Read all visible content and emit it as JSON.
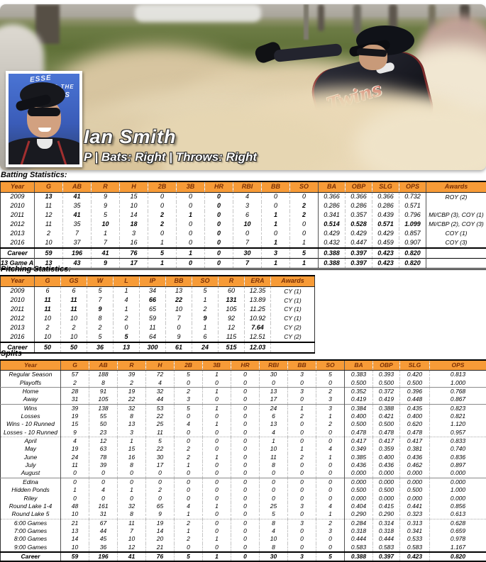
{
  "colors": {
    "header_bg": "#F79B37",
    "header_text": "#7B3005"
  },
  "player": {
    "name": "Ian Smith",
    "details": "P | Bats: Right | Throws: Right",
    "jersey_script": "Twins",
    "shirt_lines": [
      "ESSE",
      "AND THE",
      "PPERS"
    ]
  },
  "batting": {
    "title": "Batting Statistics:",
    "headers": [
      "Year",
      "G",
      "AB",
      "R",
      "H",
      "2B",
      "3B",
      "HR",
      "RBI",
      "BB",
      "SO",
      "BA",
      "OBP",
      "SLG",
      "OPS",
      "Awards"
    ],
    "rows": [
      {
        "y": "2009",
        "c": [
          "13",
          "41",
          "9",
          "15",
          "0",
          "0",
          "0",
          "4",
          "0",
          "0",
          "0.366",
          "0.366",
          "0.366",
          "0.732",
          "ROY (2)"
        ],
        "b": [
          0,
          1,
          6
        ]
      },
      {
        "y": "2010",
        "c": [
          "11",
          "35",
          "9",
          "10",
          "0",
          "0",
          "0",
          "3",
          "0",
          "2",
          "0.286",
          "0.286",
          "0.286",
          "0.571",
          ""
        ],
        "b": [
          6,
          9
        ]
      },
      {
        "y": "2011",
        "c": [
          "12",
          "41",
          "5",
          "14",
          "2",
          "1",
          "0",
          "6",
          "1",
          "2",
          "0.341",
          "0.357",
          "0.439",
          "0.796",
          "MI/CBP (3), COY (1)"
        ],
        "b": [
          1,
          4,
          5,
          6,
          8,
          9
        ]
      },
      {
        "y": "2012",
        "c": [
          "11",
          "35",
          "10",
          "18",
          "2",
          "0",
          "0",
          "10",
          "1",
          "0",
          "0.514",
          "0.528",
          "0.571",
          "1.099",
          "MI/CBP (2), COY (3)"
        ],
        "b": [
          2,
          3,
          4,
          6,
          7,
          8,
          10,
          11,
          12,
          13
        ]
      },
      {
        "y": "2013",
        "c": [
          "2",
          "7",
          "1",
          "3",
          "0",
          "0",
          "0",
          "0",
          "0",
          "0",
          "0.429",
          "0.429",
          "0.429",
          "0.857",
          "COY (1)"
        ],
        "b": [
          6
        ]
      },
      {
        "y": "2016",
        "c": [
          "10",
          "37",
          "7",
          "16",
          "1",
          "0",
          "0",
          "7",
          "1",
          "1",
          "0.432",
          "0.447",
          "0.459",
          "0.907",
          "COY (3)"
        ],
        "b": [
          6,
          8
        ]
      }
    ],
    "footer": [
      {
        "y": "Career",
        "c": [
          "59",
          "196",
          "41",
          "76",
          "5",
          "1",
          "0",
          "30",
          "3",
          "5",
          "0.388",
          "0.397",
          "0.423",
          "0.820",
          ""
        ]
      },
      {
        "y": "13 Game Avg",
        "c": [
          "13",
          "43",
          "9",
          "17",
          "1",
          "0",
          "0",
          "7",
          "1",
          "1",
          "0.388",
          "0.397",
          "0.423",
          "0.820",
          ""
        ]
      }
    ]
  },
  "pitching": {
    "title": "Pitching Statistics:",
    "headers": [
      "Year",
      "G",
      "GS",
      "W",
      "L",
      "IP",
      "BB",
      "SO",
      "R",
      "ERA",
      "Awards"
    ],
    "rows": [
      {
        "y": "2009",
        "c": [
          "6",
          "6",
          "5",
          "1",
          "34",
          "13",
          "5",
          "60",
          "12.35",
          "CY (1)"
        ],
        "b": []
      },
      {
        "y": "2010",
        "c": [
          "11",
          "11",
          "7",
          "4",
          "66",
          "22",
          "1",
          "131",
          "13.89",
          "CY (1)"
        ],
        "b": [
          0,
          1,
          4,
          5,
          7
        ]
      },
      {
        "y": "2011",
        "c": [
          "11",
          "11",
          "9",
          "1",
          "65",
          "10",
          "2",
          "105",
          "11.25",
          "CY (1)"
        ],
        "b": [
          0,
          1,
          2
        ]
      },
      {
        "y": "2012",
        "c": [
          "10",
          "10",
          "8",
          "2",
          "59",
          "7",
          "9",
          "92",
          "10.92",
          "CY (1)"
        ],
        "b": [
          6
        ]
      },
      {
        "y": "2013",
        "c": [
          "2",
          "2",
          "2",
          "0",
          "11",
          "0",
          "1",
          "12",
          "7.64",
          "CY (2)"
        ],
        "b": [
          8
        ]
      },
      {
        "y": "2016",
        "c": [
          "10",
          "10",
          "5",
          "5",
          "64",
          "9",
          "6",
          "115",
          "12.51",
          "CY (2)"
        ],
        "b": [
          3
        ]
      }
    ],
    "footer": [
      {
        "y": "Career",
        "c": [
          "50",
          "50",
          "36",
          "13",
          "300",
          "61",
          "24",
          "515",
          "12.03",
          ""
        ]
      }
    ]
  },
  "splits": {
    "title": "Splits",
    "headers": [
      "Year",
      "G",
      "AB",
      "R",
      "H",
      "2B",
      "3B",
      "HR",
      "RBI",
      "BB",
      "SO",
      "BA",
      "OBP",
      "SLG",
      "OPS"
    ],
    "rows": [
      {
        "y": "Regular Season",
        "c": [
          "57",
          "188",
          "39",
          "72",
          "5",
          "1",
          "0",
          "30",
          "3",
          "5",
          "0.383",
          "0.393",
          "0.420",
          "0.813"
        ]
      },
      {
        "y": "Playoffs",
        "c": [
          "2",
          "8",
          "2",
          "4",
          "0",
          "0",
          "0",
          "0",
          "0",
          "0",
          "0.500",
          "0.500",
          "0.500",
          "1.000"
        ]
      },
      {
        "y": "Home",
        "sep": "s",
        "c": [
          "28",
          "91",
          "19",
          "32",
          "2",
          "1",
          "0",
          "13",
          "3",
          "2",
          "0.352",
          "0.372",
          "0.396",
          "0.768"
        ]
      },
      {
        "y": "Away",
        "c": [
          "31",
          "105",
          "22",
          "44",
          "3",
          "0",
          "0",
          "17",
          "0",
          "3",
          "0.419",
          "0.419",
          "0.448",
          "0.867"
        ]
      },
      {
        "y": "Wins",
        "sep": "s",
        "c": [
          "39",
          "138",
          "32",
          "53",
          "5",
          "1",
          "0",
          "24",
          "1",
          "3",
          "0.384",
          "0.388",
          "0.435",
          "0.823"
        ]
      },
      {
        "y": "Losses",
        "c": [
          "19",
          "55",
          "8",
          "22",
          "0",
          "0",
          "0",
          "6",
          "2",
          "1",
          "0.400",
          "0.421",
          "0.400",
          "0.821"
        ]
      },
      {
        "y": "Wins - 10 Runned",
        "c": [
          "15",
          "50",
          "13",
          "25",
          "4",
          "1",
          "0",
          "13",
          "0",
          "2",
          "0.500",
          "0.500",
          "0.620",
          "1.120"
        ]
      },
      {
        "y": "Losses - 10 Runned",
        "c": [
          "9",
          "23",
          "3",
          "11",
          "0",
          "0",
          "0",
          "4",
          "0",
          "0",
          "0.478",
          "0.478",
          "0.478",
          "0.957"
        ]
      },
      {
        "y": "April",
        "sep": "d",
        "c": [
          "4",
          "12",
          "1",
          "5",
          "0",
          "0",
          "0",
          "1",
          "0",
          "0",
          "0.417",
          "0.417",
          "0.417",
          "0.833"
        ]
      },
      {
        "y": "May",
        "c": [
          "19",
          "63",
          "15",
          "22",
          "2",
          "0",
          "0",
          "10",
          "1",
          "4",
          "0.349",
          "0.359",
          "0.381",
          "0.740"
        ]
      },
      {
        "y": "June",
        "c": [
          "24",
          "78",
          "16",
          "30",
          "2",
          "1",
          "0",
          "11",
          "2",
          "1",
          "0.385",
          "0.400",
          "0.436",
          "0.836"
        ]
      },
      {
        "y": "July",
        "c": [
          "11",
          "39",
          "8",
          "17",
          "1",
          "0",
          "0",
          "8",
          "0",
          "0",
          "0.436",
          "0.436",
          "0.462",
          "0.897"
        ]
      },
      {
        "y": "August",
        "c": [
          "0",
          "0",
          "0",
          "0",
          "0",
          "0",
          "0",
          "0",
          "0",
          "0",
          "0.000",
          "0.000",
          "0.000",
          "0.000"
        ]
      },
      {
        "y": "Edina",
        "sep": "s",
        "c": [
          "0",
          "0",
          "0",
          "0",
          "0",
          "0",
          "0",
          "0",
          "0",
          "0",
          "0.000",
          "0.000",
          "0.000",
          "0.000"
        ]
      },
      {
        "y": "Hidden Ponds",
        "c": [
          "1",
          "4",
          "1",
          "2",
          "0",
          "0",
          "0",
          "0",
          "0",
          "0",
          "0.500",
          "0.500",
          "0.500",
          "1.000"
        ]
      },
      {
        "y": "Riley",
        "c": [
          "0",
          "0",
          "0",
          "0",
          "0",
          "0",
          "0",
          "0",
          "0",
          "0",
          "0.000",
          "0.000",
          "0.000",
          "0.000"
        ]
      },
      {
        "y": "Round Lake 1-4",
        "c": [
          "48",
          "161",
          "32",
          "65",
          "4",
          "1",
          "0",
          "25",
          "3",
          "4",
          "0.404",
          "0.415",
          "0.441",
          "0.856"
        ]
      },
      {
        "y": "Round Lake 5",
        "c": [
          "10",
          "31",
          "8",
          "9",
          "1",
          "0",
          "0",
          "5",
          "0",
          "1",
          "0.290",
          "0.290",
          "0.323",
          "0.613"
        ]
      },
      {
        "y": "6:00 Games",
        "sep": "d",
        "c": [
          "21",
          "67",
          "11",
          "19",
          "2",
          "0",
          "0",
          "8",
          "3",
          "2",
          "0.284",
          "0.314",
          "0.313",
          "0.628"
        ]
      },
      {
        "y": "7:00 Games",
        "c": [
          "13",
          "44",
          "7",
          "14",
          "1",
          "0",
          "0",
          "4",
          "0",
          "3",
          "0.318",
          "0.318",
          "0.341",
          "0.659"
        ]
      },
      {
        "y": "8:00 Games",
        "c": [
          "14",
          "45",
          "10",
          "20",
          "2",
          "1",
          "0",
          "10",
          "0",
          "0",
          "0.444",
          "0.444",
          "0.533",
          "0.978"
        ]
      },
      {
        "y": "9:00 Games",
        "c": [
          "10",
          "36",
          "12",
          "21",
          "0",
          "0",
          "0",
          "8",
          "0",
          "0",
          "0.583",
          "0.583",
          "0.583",
          "1.167"
        ]
      }
    ],
    "footer": [
      {
        "y": "Career",
        "c": [
          "59",
          "196",
          "41",
          "76",
          "5",
          "1",
          "0",
          "30",
          "3",
          "5",
          "0.388",
          "0.397",
          "0.423",
          "0.820"
        ]
      }
    ]
  }
}
